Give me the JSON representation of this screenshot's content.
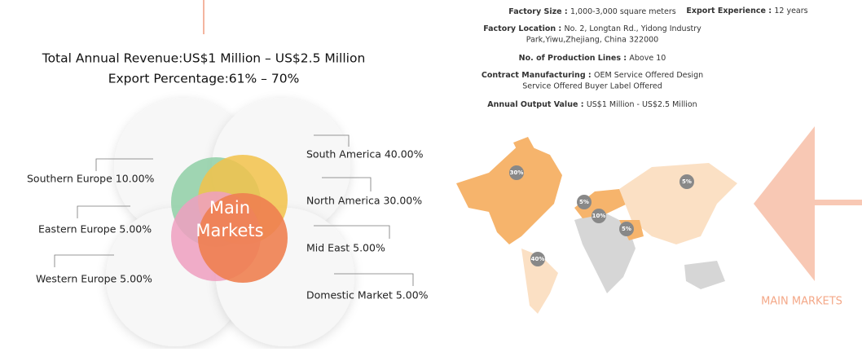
{
  "revenue": "Total Annual Revenue:US$1 Million – US$2.5 Million",
  "export_percentage": "Export Percentage:61% – 70%",
  "center_label": [
    "Main",
    "Markets"
  ],
  "markets_left": [
    "Southern Europe 10.00%",
    "Eastern Europe 5.00%",
    "Western Europe 5.00%"
  ],
  "markets_right": [
    "South America 40.00%",
    "North America 30.00%",
    "Mid East 5.00%",
    "Domestic Market 5.00%"
  ],
  "facts": [
    {
      "label": "Factory Size : ",
      "value": "1,000-3,000 square meters"
    },
    {
      "label": "Export Experience : ",
      "value": "12 years"
    },
    {
      "label": "Factory Location : ",
      "value": [
        "No. 2, Longtan Rd., Yidong Industry",
        "Park,Yiwu,Zhejiang, China 322000"
      ]
    },
    {
      "label": "No. of Production Lines : ",
      "value": "Above 10"
    },
    {
      "label": "Contract Manufacturing : ",
      "value": [
        "OEM Service Offered  Design",
        "Service Offered  Buyer Label Offered"
      ]
    },
    {
      "label": "Annual Output Value : ",
      "value": "US$1 Million - US$2.5 Million"
    }
  ],
  "map_pins": [
    "30%",
    "5%",
    "10%",
    "5%",
    "40%",
    "5%"
  ],
  "section_label": "MAIN MARKETS"
}
